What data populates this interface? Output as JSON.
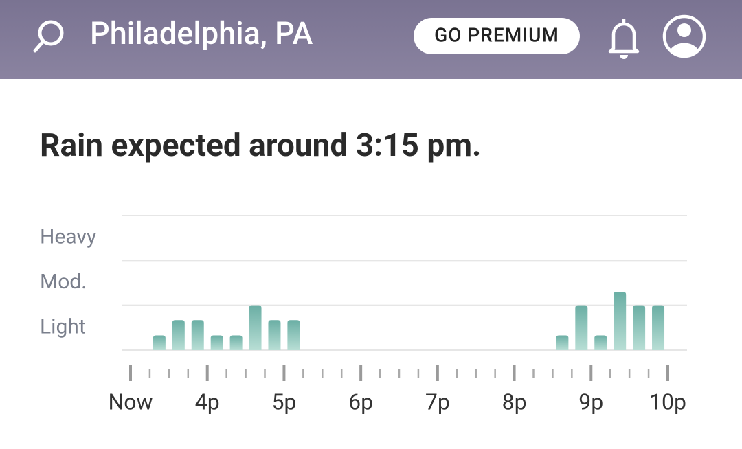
{
  "header": {
    "location": "Philadelphia, PA",
    "premium_button": "GO PREMIUM"
  },
  "chart_data": {
    "type": "bar",
    "title": "Rain expected around 3:15 pm.",
    "x": [
      0.375,
      0.625,
      0.875,
      1.125,
      1.375,
      1.625,
      1.875,
      2.125,
      5.625,
      5.875,
      6.125,
      6.375,
      6.625,
      6.875
    ],
    "values": [
      0.33,
      0.67,
      0.67,
      0.33,
      0.33,
      1.0,
      0.67,
      0.67,
      0.33,
      1.0,
      0.33,
      1.3,
      1.0,
      1.0
    ],
    "color": "#7fc0b4",
    "xlim": [
      0,
      7
    ],
    "xticks": [
      {
        "value": 0,
        "label": "Now"
      },
      {
        "value": 1,
        "label": "4p"
      },
      {
        "value": 2,
        "label": "5p"
      },
      {
        "value": 3,
        "label": "6p"
      },
      {
        "value": 4,
        "label": "7p"
      },
      {
        "value": 5,
        "label": "8p"
      },
      {
        "value": 6,
        "label": "9p"
      },
      {
        "value": 7,
        "label": "10p"
      }
    ],
    "minor_xticks": [
      0.25,
      0.5,
      0.75,
      1.25,
      1.5,
      1.75,
      2.25,
      2.5,
      2.75,
      3.25,
      3.5,
      3.75,
      4.25,
      4.5,
      4.75,
      5.25,
      5.5,
      5.75,
      6.25,
      6.5,
      6.75
    ],
    "ylim": [
      0,
      3
    ],
    "yticks": [
      0,
      1,
      2,
      3
    ],
    "levels": [
      {
        "value": 0.5,
        "label": "Light"
      },
      {
        "value": 1.5,
        "label": "Mod."
      },
      {
        "value": 2.5,
        "label": "Heavy"
      }
    ],
    "grid": true
  }
}
